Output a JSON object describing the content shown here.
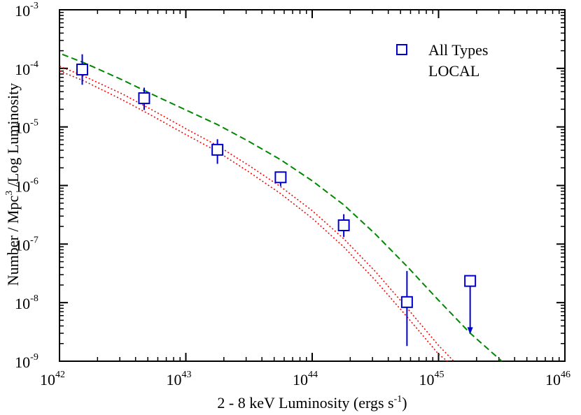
{
  "chart_data": {
    "type": "scatter",
    "xlabel": "2 - 8 keV Luminosity  (ergs s",
    "xlabel_sup": "-1",
    "xlabel_close": ")",
    "ylabel_pre": "Number / Mpc",
    "ylabel_sup": "3",
    "ylabel_post": " /Log Luminosity",
    "x_scale": "log",
    "y_scale": "log",
    "xlim_exp": [
      42,
      46
    ],
    "ylim_exp": [
      -9,
      -3
    ],
    "x_ticks": [
      {
        "base": "10",
        "exp": "42"
      },
      {
        "base": "10",
        "exp": "43"
      },
      {
        "base": "10",
        "exp": "44"
      },
      {
        "base": "10",
        "exp": "45"
      },
      {
        "base": "10",
        "exp": "46"
      }
    ],
    "y_ticks": [
      {
        "base": "10",
        "exp": "-9"
      },
      {
        "base": "10",
        "exp": "-8"
      },
      {
        "base": "10",
        "exp": "-7"
      },
      {
        "base": "10",
        "exp": "-6"
      },
      {
        "base": "10",
        "exp": "-5"
      },
      {
        "base": "10",
        "exp": "-4"
      },
      {
        "base": "10",
        "exp": "-3"
      }
    ],
    "series": [
      {
        "name": "All Types",
        "kind": "points",
        "color": "#0000cc",
        "log_x": [
          42.18,
          42.67,
          43.25,
          43.75,
          44.25,
          44.75,
          45.25
        ],
        "log_y": [
          -4.02,
          -4.51,
          -5.39,
          -5.86,
          -6.68,
          -7.99,
          -7.63
        ],
        "log_y_err_lo": [
          -4.28,
          -4.71,
          -5.63,
          -6.01,
          -6.88,
          -8.74,
          -8.54
        ],
        "log_y_err_hi": [
          -3.76,
          -4.33,
          -5.21,
          -5.79,
          -6.49,
          -7.46,
          -7.63
        ],
        "upper_limit": [
          false,
          false,
          false,
          false,
          false,
          false,
          true
        ]
      },
      {
        "name": "model (dashed)",
        "kind": "line",
        "color": "#008800",
        "style": "dashed",
        "log_x": [
          41.95,
          42.2,
          42.5,
          42.75,
          43.0,
          43.25,
          43.5,
          43.75,
          44.0,
          44.25,
          44.5,
          44.75,
          45.0,
          45.25,
          45.5
        ],
        "log_y": [
          -3.7,
          -3.91,
          -4.2,
          -4.46,
          -4.71,
          -4.96,
          -5.25,
          -5.56,
          -5.92,
          -6.33,
          -6.83,
          -7.38,
          -7.96,
          -8.52,
          -9.0
        ]
      },
      {
        "name": "model (dotted upper)",
        "kind": "line",
        "color": "#ff0000",
        "style": "dotted",
        "log_x": [
          41.95,
          42.2,
          42.5,
          42.75,
          43.0,
          43.25,
          43.5,
          43.75,
          44.0,
          44.25,
          44.5,
          44.75,
          45.0,
          45.12
        ],
        "log_y": [
          -3.92,
          -4.14,
          -4.44,
          -4.73,
          -5.03,
          -5.32,
          -5.66,
          -6.02,
          -6.43,
          -6.91,
          -7.47,
          -8.09,
          -8.73,
          -9.0
        ]
      },
      {
        "name": "model (dotted lower)",
        "kind": "line",
        "color": "#ff0000",
        "style": "dotted",
        "log_x": [
          41.95,
          42.2,
          42.5,
          42.75,
          43.0,
          43.25,
          43.5,
          43.75,
          44.0,
          44.25,
          44.5,
          44.75,
          45.0,
          45.07
        ],
        "log_y": [
          -4.0,
          -4.22,
          -4.54,
          -4.83,
          -5.13,
          -5.42,
          -5.77,
          -6.14,
          -6.56,
          -7.05,
          -7.62,
          -8.24,
          -8.88,
          -9.0
        ]
      }
    ],
    "legend": {
      "position": "top-right",
      "entries": [
        {
          "label": "All Types",
          "symbol": "open-square",
          "color": "#0000cc"
        },
        {
          "label": "LOCAL",
          "symbol": "none",
          "color": "#000000"
        }
      ]
    }
  }
}
